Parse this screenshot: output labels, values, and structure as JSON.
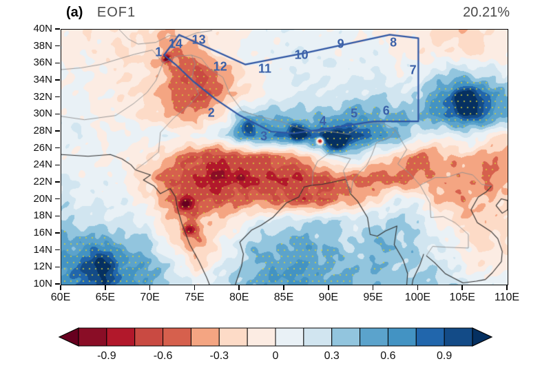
{
  "figure": {
    "panel_label": "(a)",
    "title": "EOF1",
    "variance": "20.21%"
  },
  "chart_data": {
    "type": "heatmap",
    "title": "EOF1",
    "annotation_top_right": "20.21%",
    "xlim": [
      60,
      110
    ],
    "ylim": [
      10,
      40
    ],
    "x_axis": {
      "labels": [
        "60E",
        "65E",
        "70E",
        "75E",
        "80E",
        "85E",
        "90E",
        "95E",
        "100E",
        "105E",
        "110E"
      ],
      "values": [
        60,
        65,
        70,
        75,
        80,
        85,
        90,
        95,
        100,
        105,
        110
      ]
    },
    "y_axis": {
      "labels": [
        "10N",
        "12N",
        "14N",
        "16N",
        "18N",
        "20N",
        "22N",
        "24N",
        "26N",
        "28N",
        "30N",
        "32N",
        "34N",
        "36N",
        "38N",
        "40N"
      ],
      "values": [
        10,
        12,
        14,
        16,
        18,
        20,
        22,
        24,
        26,
        28,
        30,
        32,
        34,
        36,
        38,
        40
      ]
    },
    "grid": {
      "lon_start": 60,
      "lon_step": 2.5,
      "lat_start": 40,
      "lat_step": -2.5,
      "values": [
        [
          -0.1,
          -0.1,
          -0.1,
          -0.15,
          -0.2,
          -0.25,
          -0.2,
          -0.1,
          0.0,
          0.05,
          0.1,
          0.1,
          0.05,
          0.05,
          0.0,
          -0.05,
          -0.1,
          -0.2,
          -0.25,
          -0.2,
          -0.1
        ],
        [
          -0.05,
          -0.1,
          -0.1,
          -0.15,
          -0.2,
          -0.45,
          -0.3,
          -0.1,
          0.05,
          0.1,
          0.1,
          0.1,
          0.1,
          0.05,
          0.05,
          0.0,
          -0.1,
          -0.15,
          -0.2,
          -0.15,
          -0.05
        ],
        [
          0.0,
          0.0,
          -0.05,
          -0.1,
          -0.2,
          -0.45,
          -0.6,
          -0.5,
          -0.2,
          0.05,
          0.1,
          0.1,
          0.15,
          0.1,
          0.1,
          0.05,
          0.1,
          0.2,
          0.3,
          0.2,
          0.1
        ],
        [
          0.05,
          0.0,
          -0.05,
          -0.1,
          -0.3,
          -0.5,
          -0.65,
          -0.55,
          -0.25,
          0.0,
          0.1,
          0.15,
          0.2,
          0.2,
          0.25,
          0.2,
          0.3,
          0.6,
          0.8,
          0.7,
          0.45
        ],
        [
          0.1,
          0.05,
          0.0,
          -0.05,
          -0.2,
          -0.35,
          -0.45,
          -0.2,
          0.3,
          0.4,
          0.35,
          0.35,
          0.4,
          0.5,
          0.5,
          0.45,
          0.45,
          0.7,
          0.9,
          0.75,
          0.5
        ],
        [
          0.15,
          0.1,
          0.05,
          0.05,
          0.1,
          0.1,
          0.0,
          0.15,
          0.55,
          0.75,
          0.7,
          0.8,
          0.9,
          0.9,
          0.8,
          0.5,
          0.2,
          0.0,
          0.2,
          0.0,
          -0.2
        ],
        [
          0.1,
          0.05,
          0.0,
          0.0,
          -0.1,
          -0.4,
          -0.6,
          -0.7,
          -0.7,
          -0.6,
          -0.5,
          -0.35,
          0.0,
          0.25,
          -0.1,
          -0.3,
          -0.5,
          -0.4,
          -0.3,
          -0.4,
          -0.3
        ],
        [
          0.15,
          0.1,
          0.05,
          -0.05,
          -0.3,
          -0.6,
          -0.8,
          -0.9,
          -0.85,
          -0.8,
          -0.75,
          -0.7,
          -0.6,
          -0.5,
          -0.5,
          -0.6,
          -0.5,
          -0.3,
          -0.4,
          -0.5,
          -0.4
        ],
        [
          0.2,
          0.15,
          0.1,
          0.05,
          -0.1,
          -0.5,
          -0.7,
          -0.6,
          -0.5,
          -0.55,
          -0.6,
          -0.65,
          -0.6,
          -0.4,
          -0.2,
          0.1,
          0.0,
          -0.3,
          -0.4,
          -0.3,
          -0.2
        ],
        [
          0.3,
          0.25,
          0.2,
          0.15,
          0.1,
          -0.3,
          -0.45,
          -0.2,
          0.0,
          0.1,
          0.2,
          0.3,
          0.3,
          0.2,
          0.3,
          0.3,
          0.2,
          0.0,
          -0.2,
          -0.3,
          -0.2
        ],
        [
          0.5,
          0.5,
          0.45,
          0.4,
          0.3,
          -0.2,
          -0.4,
          -0.1,
          0.2,
          0.4,
          0.5,
          0.5,
          0.4,
          0.3,
          0.4,
          0.4,
          0.3,
          0.1,
          -0.1,
          -0.2,
          -0.1
        ],
        [
          0.6,
          0.65,
          0.6,
          0.55,
          0.45,
          0.2,
          -0.2,
          0.0,
          0.3,
          0.5,
          0.6,
          0.6,
          0.5,
          0.4,
          0.4,
          0.4,
          0.3,
          0.2,
          0.0,
          -0.1,
          -0.1
        ],
        [
          0.6,
          0.7,
          0.7,
          0.6,
          0.5,
          0.3,
          0.1,
          0.2,
          0.4,
          0.55,
          0.65,
          0.6,
          0.55,
          0.45,
          0.4,
          0.4,
          0.35,
          0.3,
          0.2,
          0.1,
          0.0
        ]
      ]
    },
    "spots": [
      {
        "lon": 89.0,
        "lat": 26.9,
        "amp": -1.7,
        "r": 0.38
      },
      {
        "lon": 71.8,
        "lat": 36.6,
        "amp": -0.9,
        "r": 0.5
      },
      {
        "lon": 86.5,
        "lat": 27.8,
        "amp": 0.7,
        "r": 1.0
      },
      {
        "lon": 90.8,
        "lat": 26.9,
        "amp": 0.8,
        "r": 1.3
      },
      {
        "lon": 105.6,
        "lat": 31.5,
        "amp": 0.5,
        "r": 1.8
      },
      {
        "lon": 73.8,
        "lat": 19.5,
        "amp": -0.7,
        "r": 0.8
      },
      {
        "lon": 74.3,
        "lat": 16.5,
        "amp": -0.6,
        "r": 0.7
      },
      {
        "lon": 64.5,
        "lat": 12.0,
        "amp": 0.5,
        "r": 2.2
      },
      {
        "lon": 81.0,
        "lat": 28.6,
        "amp": 0.6,
        "r": 0.9
      }
    ],
    "contour_levels": [
      -1.05,
      -0.9,
      -0.75,
      -0.6,
      -0.45,
      -0.3,
      -0.15,
      0,
      0.15,
      0.3,
      0.45,
      0.6,
      0.75,
      0.9,
      1.05
    ],
    "palette": [
      "#67001f",
      "#8a0d26",
      "#b2182b",
      "#c94a42",
      "#d6604d",
      "#f4a582",
      "#fddbc7",
      "#fcece3",
      "#e9f1f6",
      "#d1e5f0",
      "#92c5de",
      "#5ba3cc",
      "#4393c3",
      "#2166ac",
      "#134b87",
      "#053061"
    ],
    "colorbar": {
      "tick_labels": [
        "-0.9",
        "-0.6",
        "-0.3",
        "0",
        "0.3",
        "0.6",
        "0.9"
      ],
      "tick_level_indices": [
        1,
        3,
        5,
        7,
        9,
        11,
        13
      ]
    },
    "stipple": {
      "threshold": 0.45,
      "spacing": 9,
      "color": "#d6d23e"
    },
    "marker_color": "#3b61a8",
    "region_markers": [
      {
        "label": "1",
        "lon": 70.9,
        "lat": 37.3
      },
      {
        "label": "2",
        "lon": 76.8,
        "lat": 30.2
      },
      {
        "label": "3",
        "lon": 82.7,
        "lat": 27.4
      },
      {
        "label": "4",
        "lon": 89.3,
        "lat": 29.2
      },
      {
        "label": "5",
        "lon": 92.8,
        "lat": 30.1
      },
      {
        "label": "6",
        "lon": 96.4,
        "lat": 30.4
      },
      {
        "label": "7",
        "lon": 99.4,
        "lat": 35.2
      },
      {
        "label": "8",
        "lon": 97.2,
        "lat": 38.5
      },
      {
        "label": "9",
        "lon": 91.3,
        "lat": 38.3
      },
      {
        "label": "10",
        "lon": 86.9,
        "lat": 37.0
      },
      {
        "label": "11",
        "lon": 82.8,
        "lat": 35.4
      },
      {
        "label": "12",
        "lon": 77.8,
        "lat": 35.6
      },
      {
        "label": "13",
        "lon": 75.4,
        "lat": 38.8
      },
      {
        "label": "14",
        "lon": 72.8,
        "lat": 38.3
      }
    ],
    "region_outline": {
      "color": "#2e55a3",
      "points": [
        [
          71.5,
          37.0
        ],
        [
          73.2,
          39.4
        ],
        [
          80.6,
          35.9
        ],
        [
          87.5,
          37.3
        ],
        [
          96.8,
          39.4
        ],
        [
          100.0,
          39.0
        ],
        [
          100.0,
          29.2
        ],
        [
          95.0,
          29.2
        ],
        [
          90.0,
          28.4
        ],
        [
          86.0,
          27.8
        ],
        [
          83.5,
          28.0
        ],
        [
          80.0,
          29.9
        ],
        [
          77.3,
          31.8
        ],
        [
          74.8,
          33.9
        ],
        [
          72.8,
          35.9
        ]
      ]
    },
    "map_lines": {
      "coast_color": "#2f2f2f",
      "border_color": "#8f8f8f",
      "coasts": [
        [
          [
            60,
            25.3
          ],
          [
            63,
            25.1
          ],
          [
            65.5,
            25.3
          ],
          [
            66.8,
            24.8
          ],
          [
            67.8,
            24.1
          ],
          [
            68.3,
            23.5
          ],
          [
            70,
            22.9
          ],
          [
            69.2,
            22.3
          ],
          [
            70.4,
            21.6
          ],
          [
            71.1,
            20.7
          ],
          [
            72.2,
            21.3
          ],
          [
            72.8,
            20.3
          ],
          [
            73,
            19
          ],
          [
            73.5,
            17.2
          ],
          [
            74.4,
            14.7
          ],
          [
            75.4,
            12.8
          ],
          [
            76.3,
            10.8
          ],
          [
            76.6,
            10
          ]
        ],
        [
          [
            79.5,
            10
          ],
          [
            80.2,
            12.2
          ],
          [
            80.4,
            13.6
          ],
          [
            80,
            15
          ],
          [
            81.3,
            16.4
          ],
          [
            82.4,
            17
          ],
          [
            83.7,
            17.9
          ],
          [
            85.2,
            19.6
          ],
          [
            86.6,
            20.3
          ],
          [
            87.2,
            21.5
          ],
          [
            88.1,
            21.7
          ],
          [
            89.2,
            21.8
          ],
          [
            90.6,
            22.1
          ],
          [
            91.9,
            22.4
          ]
        ],
        [
          [
            91.9,
            22.4
          ],
          [
            92.4,
            20.7
          ],
          [
            93.2,
            19.8
          ],
          [
            94.3,
            17.9
          ],
          [
            94.6,
            15.9
          ],
          [
            95.4,
            15.7
          ],
          [
            96.3,
            16.3
          ],
          [
            97.6,
            16.9
          ],
          [
            97.3,
            14.7
          ],
          [
            98.3,
            12.9
          ],
          [
            98.8,
            11.3
          ],
          [
            98.7,
            10
          ]
        ],
        [
          [
            100.6,
            13.6
          ],
          [
            100.2,
            12.4
          ],
          [
            99.4,
            10.6
          ],
          [
            99.3,
            10
          ]
        ],
        [
          [
            100.9,
            13.4
          ],
          [
            101.8,
            12.6
          ],
          [
            103,
            11.3
          ],
          [
            105,
            10.2
          ],
          [
            106.5,
            10.4
          ],
          [
            107.5,
            10.6
          ],
          [
            108.3,
            11.4
          ],
          [
            109.3,
            12.7
          ],
          [
            109.4,
            13.9
          ],
          [
            108.9,
            15.4
          ],
          [
            108.2,
            16.2
          ],
          [
            106.6,
            17.3
          ],
          [
            105.9,
            18.8
          ],
          [
            106.7,
            20.3
          ],
          [
            107.6,
            20.9
          ],
          [
            108.2,
            21.6
          ]
        ],
        [
          [
            108.7,
            19.3
          ],
          [
            109.4,
            18.4
          ],
          [
            110,
            18.8
          ],
          [
            110,
            19.9
          ],
          [
            109.3,
            20.1
          ],
          [
            108.7,
            19.3
          ]
        ]
      ],
      "borders": [
        [
          [
            74.6,
            37
          ],
          [
            75.7,
            36.6
          ],
          [
            76.6,
            35.4
          ],
          [
            78.1,
            34.4
          ],
          [
            78.9,
            32.4
          ],
          [
            80.3,
            30.4
          ],
          [
            82.1,
            29.8
          ],
          [
            84.6,
            29.2
          ],
          [
            86.6,
            28.4
          ],
          [
            88.6,
            27.9
          ],
          [
            89.6,
            28.1
          ],
          [
            92.1,
            27.7
          ],
          [
            94.1,
            29
          ],
          [
            96.1,
            29
          ],
          [
            97.4,
            28.2
          ]
        ],
        [
          [
            68.3,
            23.5
          ],
          [
            69.6,
            24.5
          ],
          [
            70.9,
            25.6
          ],
          [
            71.1,
            27.9
          ],
          [
            72.6,
            29.6
          ],
          [
            74.3,
            31.1
          ],
          [
            75.4,
            32.4
          ],
          [
            74.6,
            34.2
          ],
          [
            75,
            36
          ],
          [
            74.6,
            37
          ]
        ],
        [
          [
            60,
            29.8
          ],
          [
            62.6,
            29.4
          ],
          [
            66.1,
            29.9
          ],
          [
            68.1,
            31.3
          ],
          [
            69.6,
            32.6
          ],
          [
            70.6,
            34
          ],
          [
            71.4,
            36.1
          ],
          [
            73.1,
            36.9
          ],
          [
            74.6,
            37
          ]
        ],
        [
          [
            60,
            35.3
          ],
          [
            62.2,
            35.5
          ],
          [
            64.4,
            35.9
          ],
          [
            66.6,
            36.6
          ],
          [
            68.2,
            37.1
          ],
          [
            70.2,
            37.6
          ],
          [
            71.4,
            36.1
          ]
        ],
        [
          [
            66.5,
            40
          ],
          [
            67.5,
            38.9
          ],
          [
            68.6,
            38.3
          ],
          [
            70.6,
            38.5
          ],
          [
            72.1,
            39.3
          ],
          [
            73.9,
            39.1
          ],
          [
            75.1,
            39.6
          ],
          [
            76.9,
            39.9
          ]
        ],
        [
          [
            92.4,
            20.7
          ],
          [
            92.7,
            22.3
          ],
          [
            93.3,
            23.1
          ],
          [
            94.2,
            24
          ],
          [
            94.8,
            25.3
          ],
          [
            95.3,
            26.7
          ],
          [
            96.9,
            27.4
          ],
          [
            97.4,
            28.2
          ]
        ],
        [
          [
            88.1,
            21.7
          ],
          [
            88.2,
            23.3
          ],
          [
            88.7,
            24.5
          ],
          [
            89.9,
            25.4
          ],
          [
            91.3,
            25.1
          ],
          [
            92.4,
            24.8
          ],
          [
            91.6,
            23.4
          ],
          [
            92.4,
            20.7
          ]
        ],
        [
          [
            97.4,
            28.2
          ],
          [
            98.7,
            25.9
          ],
          [
            97.7,
            24.2
          ],
          [
            99,
            23.1
          ],
          [
            100.2,
            21.7
          ],
          [
            101.9,
            22.6
          ],
          [
            103.1,
            22.6
          ],
          [
            104.9,
            23.2
          ],
          [
            106.1,
            22.9
          ],
          [
            107.1,
            21.8
          ],
          [
            108.2,
            21.6
          ]
        ],
        [
          [
            100.2,
            21.7
          ],
          [
            101.3,
            19.6
          ],
          [
            101.4,
            17.9
          ],
          [
            102.8,
            18
          ],
          [
            104.1,
            17.3
          ],
          [
            105.6,
            15.9
          ],
          [
            105.6,
            14.3
          ],
          [
            103.1,
            14.4
          ],
          [
            101.6,
            14.5
          ],
          [
            100.9,
            13.4
          ]
        ]
      ]
    }
  }
}
